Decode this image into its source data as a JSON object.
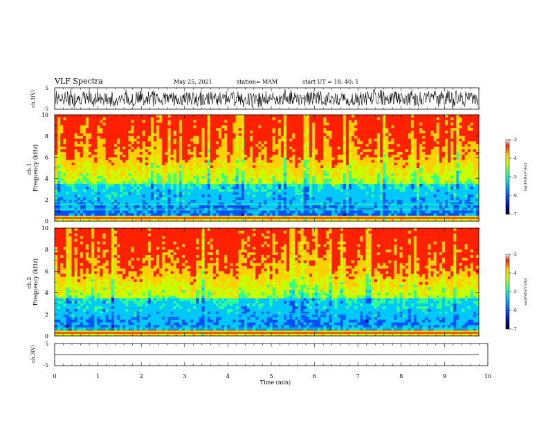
{
  "header": {
    "title": "VLF Spectra",
    "date": "May 25, 2021",
    "station": "station= MAM",
    "start_ut": "start  UT  =   18: 40: 1"
  },
  "chart_data": [
    {
      "type": "line",
      "panel": "ch1-waveform",
      "ylabel": "ch.1(V)",
      "ylim": [
        -5,
        5
      ],
      "yticks": [
        "-5",
        "5"
      ],
      "xlim": [
        0,
        10
      ],
      "trace": "dense black waveform, roughly -4.5 to 4.5 V"
    },
    {
      "type": "heatmap",
      "panel": "ch1-spectrogram",
      "ylabel": "ch.1\nFrequency  (kHz)",
      "ylim": [
        0,
        10
      ],
      "yticks": [
        "0",
        "2",
        "4",
        "6",
        "8",
        "10"
      ],
      "xlim": [
        0,
        10
      ],
      "colorbar": {
        "label": "log(PSD)(V²/Hz)",
        "range": [
          -7,
          -3
        ],
        "ticks": [
          "-3",
          "-4",
          "-5",
          "-6",
          "-7"
        ]
      }
    },
    {
      "type": "heatmap",
      "panel": "ch2-spectrogram",
      "ylabel": "ch.2\nFrequency  (kHz)",
      "ylim": [
        0,
        10
      ],
      "yticks": [
        "0",
        "2",
        "4",
        "6",
        "8",
        "10"
      ],
      "xlim": [
        0,
        10
      ],
      "colorbar": {
        "label": "log(PSD)(V²/Hz)",
        "range": [
          -7,
          -3
        ],
        "ticks": [
          "-3",
          "-4",
          "-5",
          "-6",
          "-7"
        ]
      }
    },
    {
      "type": "line",
      "panel": "ch3-waveform",
      "ylabel": "ch.3(V)",
      "ylim": [
        -5,
        5
      ],
      "yticks": [
        "-5",
        "5"
      ],
      "xlim": [
        0,
        10
      ],
      "trace": "flat line at about -1.5 V"
    }
  ],
  "x_axis": {
    "label": "Time  (min)",
    "ticks": [
      "0",
      "1",
      "2",
      "3",
      "4",
      "5",
      "6",
      "7",
      "8",
      "9",
      "10"
    ]
  },
  "colors": {
    "palette": [
      "#000090",
      "#0050ff",
      "#00c8ff",
      "#30ff90",
      "#c8ff00",
      "#ffd000",
      "#ff2000"
    ]
  }
}
